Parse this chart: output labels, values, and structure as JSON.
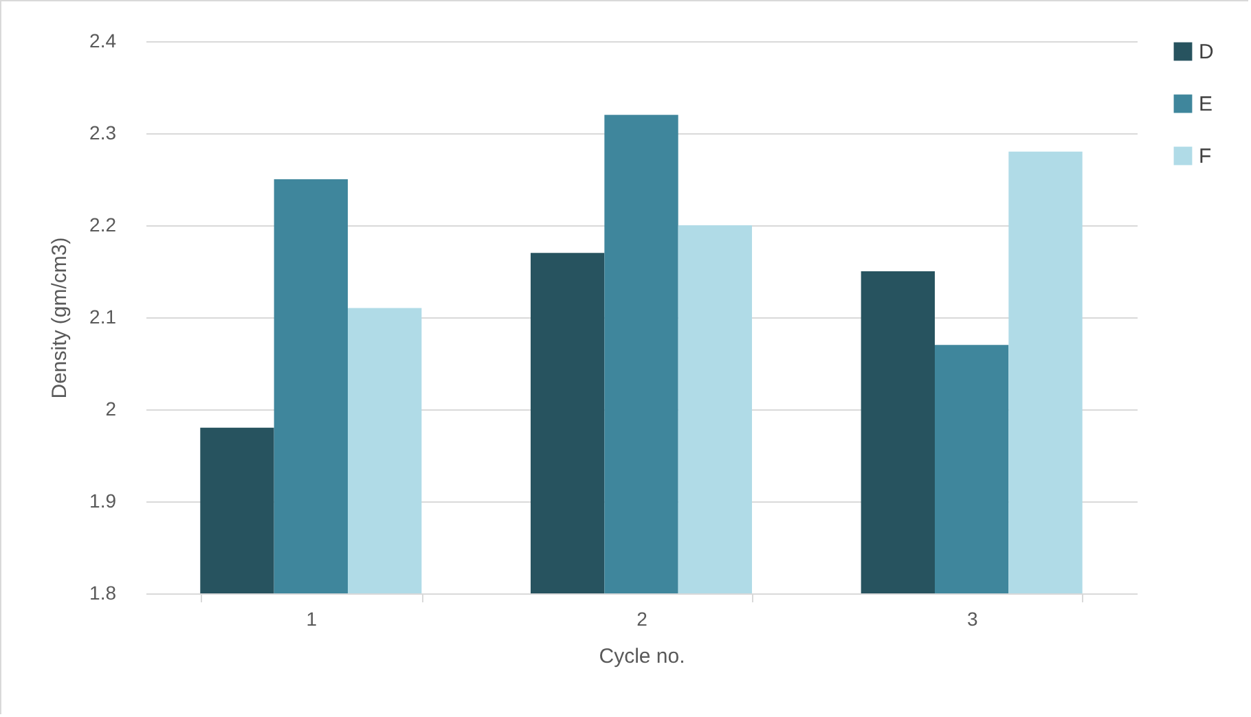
{
  "chart_data": {
    "type": "bar",
    "xlabel": "Cycle no.",
    "ylabel": "Density (gm/cm3)",
    "categories": [
      "1",
      "2",
      "3"
    ],
    "series": [
      {
        "name": "D",
        "color": "#27535f",
        "values": [
          1.98,
          2.17,
          2.15
        ]
      },
      {
        "name": "E",
        "color": "#3f869c",
        "values": [
          2.25,
          2.32,
          2.07
        ]
      },
      {
        "name": "F",
        "color": "#b0dbe7",
        "values": [
          2.11,
          2.2,
          2.28
        ]
      }
    ],
    "ylim": [
      1.8,
      2.4
    ],
    "yticks": [
      1.8,
      1.9,
      2,
      2.1,
      2.2,
      2.3,
      2.4
    ],
    "grid": "y",
    "legend": "right"
  }
}
